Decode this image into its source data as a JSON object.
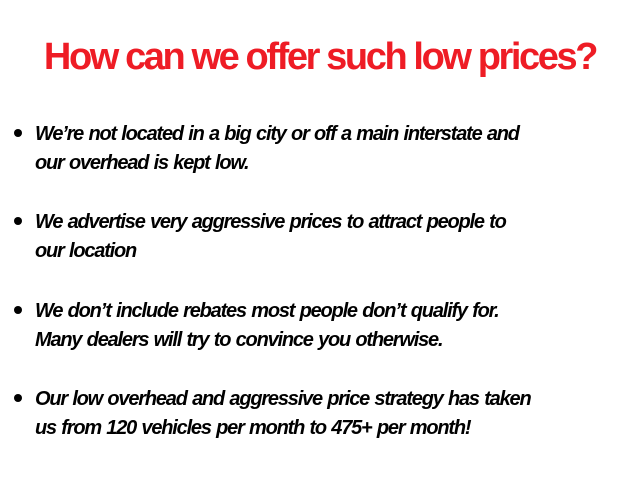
{
  "title": "How can we offer such low prices?",
  "colors": {
    "title": "#ee1c25",
    "text": "#000000"
  },
  "bullets": [
    {
      "lines": [
        "We’re not located in a big city or off a main interstate and",
        "our overhead is kept low."
      ]
    },
    {
      "lines": [
        "We advertise very aggressive prices to attract people to",
        "our location"
      ]
    },
    {
      "lines": [
        "We don’t include rebates most people don’t qualify for.",
        "Many dealers will try to convince you otherwise."
      ]
    },
    {
      "lines": [
        "Our low overhead and aggressive price strategy has taken",
        "us from 120 vehicles per month to 475+ per month!"
      ]
    }
  ]
}
